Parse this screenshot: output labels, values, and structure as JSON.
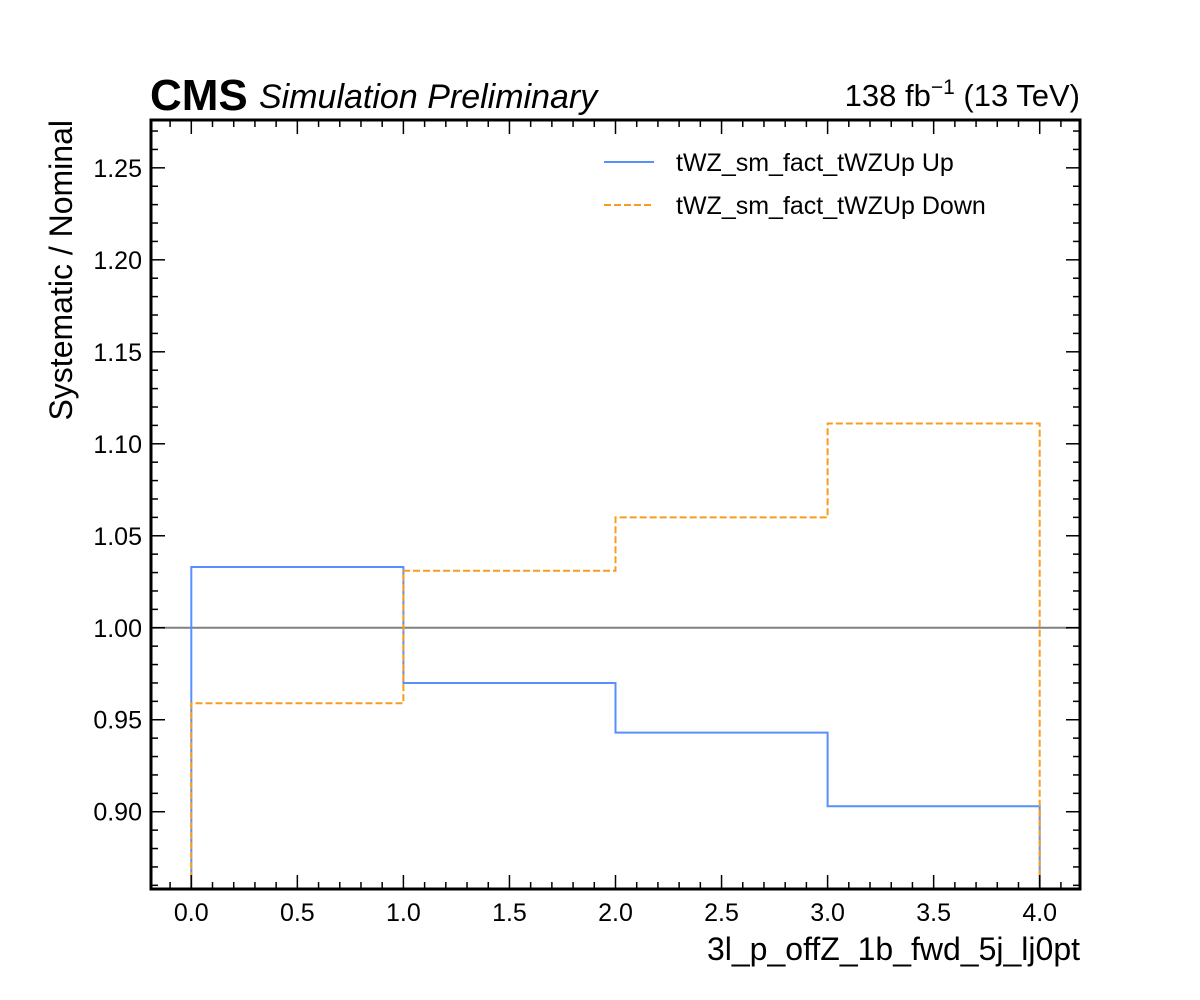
{
  "header": {
    "cms": "CMS",
    "experiment": "Simulation Preliminary",
    "lumi_value": "138 fb",
    "lumi_exp": "−1",
    "lumi_energy": " (13 TeV)"
  },
  "chart_data": {
    "type": "line",
    "drawstyle": "steps",
    "xlabel": "3l_p_offZ_1b_fwd_5j_lj0pt",
    "ylabel": "Systematic / Nominal",
    "xlim": [
      -0.19,
      4.19
    ],
    "ylim": [
      0.858,
      1.276
    ],
    "bin_edges": [
      0,
      1,
      2,
      3,
      4
    ],
    "x_ticks": [
      0.0,
      0.5,
      1.0,
      1.5,
      2.0,
      2.5,
      3.0,
      3.5,
      4.0
    ],
    "x_tick_labels": [
      "0.0",
      "0.5",
      "1.0",
      "1.5",
      "2.0",
      "2.5",
      "3.0",
      "3.5",
      "4.0"
    ],
    "y_ticks": [
      0.9,
      0.95,
      1.0,
      1.05,
      1.1,
      1.15,
      1.2,
      1.25
    ],
    "y_tick_labels": [
      "0.90",
      "0.95",
      "1.00",
      "1.05",
      "1.10",
      "1.15",
      "1.20",
      "1.25"
    ],
    "reference_line": 1.0,
    "legend_position": "top-right",
    "grid": false,
    "series": [
      {
        "name": "tWZ_sm_fact_tWZUp Up",
        "values": [
          1.033,
          0.97,
          0.943,
          0.903
        ],
        "color": "#5790fc",
        "dash": "solid"
      },
      {
        "name": "tWZ_sm_fact_tWZUp Down",
        "values": [
          0.959,
          1.031,
          1.06,
          1.111
        ],
        "color": "#f89c20",
        "dash": "dashed"
      }
    ],
    "reference_color": "#808080"
  }
}
